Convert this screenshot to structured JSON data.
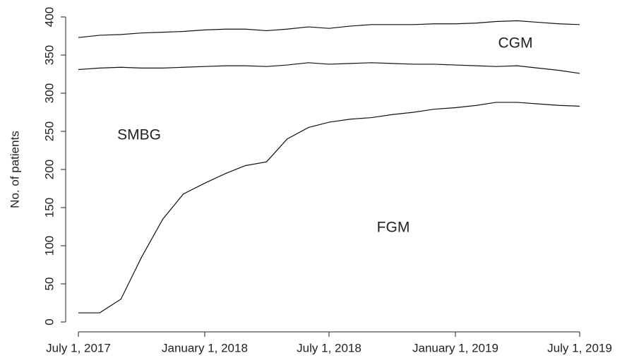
{
  "chart_data": {
    "type": "line",
    "y_label": "No. of patients",
    "annotations": [
      "CGM",
      "SMBG",
      "FGM"
    ],
    "x": [
      "2017-07-01",
      "2017-08-01",
      "2017-09-01",
      "2017-10-01",
      "2017-11-01",
      "2017-12-01",
      "2018-01-01",
      "2018-02-01",
      "2018-03-01",
      "2018-04-01",
      "2018-05-01",
      "2018-06-01",
      "2018-07-01",
      "2018-08-01",
      "2018-09-01",
      "2018-10-01",
      "2018-11-01",
      "2018-12-01",
      "2019-01-01",
      "2019-02-01",
      "2019-03-01",
      "2019-04-01",
      "2019-05-01",
      "2019-06-01",
      "2019-07-01"
    ],
    "series": [
      {
        "color": "#111",
        "values": [
          12,
          12,
          30,
          85,
          135,
          168,
          182,
          195,
          205,
          210,
          240,
          255,
          262,
          266,
          268,
          272,
          275,
          279,
          281,
          284,
          288,
          288,
          286,
          284,
          283
        ]
      },
      {
        "color": "#111",
        "values": [
          331,
          333,
          334,
          333,
          333,
          334,
          335,
          336,
          336,
          335,
          337,
          340,
          338,
          339,
          340,
          339,
          338,
          338,
          337,
          336,
          335,
          336,
          333,
          330,
          326
        ]
      },
      {
        "color": "#111",
        "values": [
          373,
          376,
          377,
          379,
          380,
          381,
          383,
          384,
          384,
          382,
          384,
          387,
          385,
          388,
          390,
          390,
          390,
          391,
          391,
          392,
          394,
          395,
          393,
          391,
          390
        ]
      }
    ],
    "xlim": [
      "2017-07-01",
      "2019-07-01"
    ],
    "xticks": [
      {
        "value": "2017-07-01",
        "label": "July 1, 2017"
      },
      {
        "value": "2018-01-01",
        "label": "January 1, 2018"
      },
      {
        "value": "2018-07-01",
        "label": "July 1, 2018"
      },
      {
        "value": "2019-01-01",
        "label": "January 1, 2019"
      },
      {
        "value": "2019-07-01",
        "label": "July 1, 2019"
      }
    ],
    "ylim": [
      0,
      400
    ],
    "yticks": [
      0,
      50,
      100,
      150,
      200,
      250,
      300,
      350,
      400
    ]
  }
}
